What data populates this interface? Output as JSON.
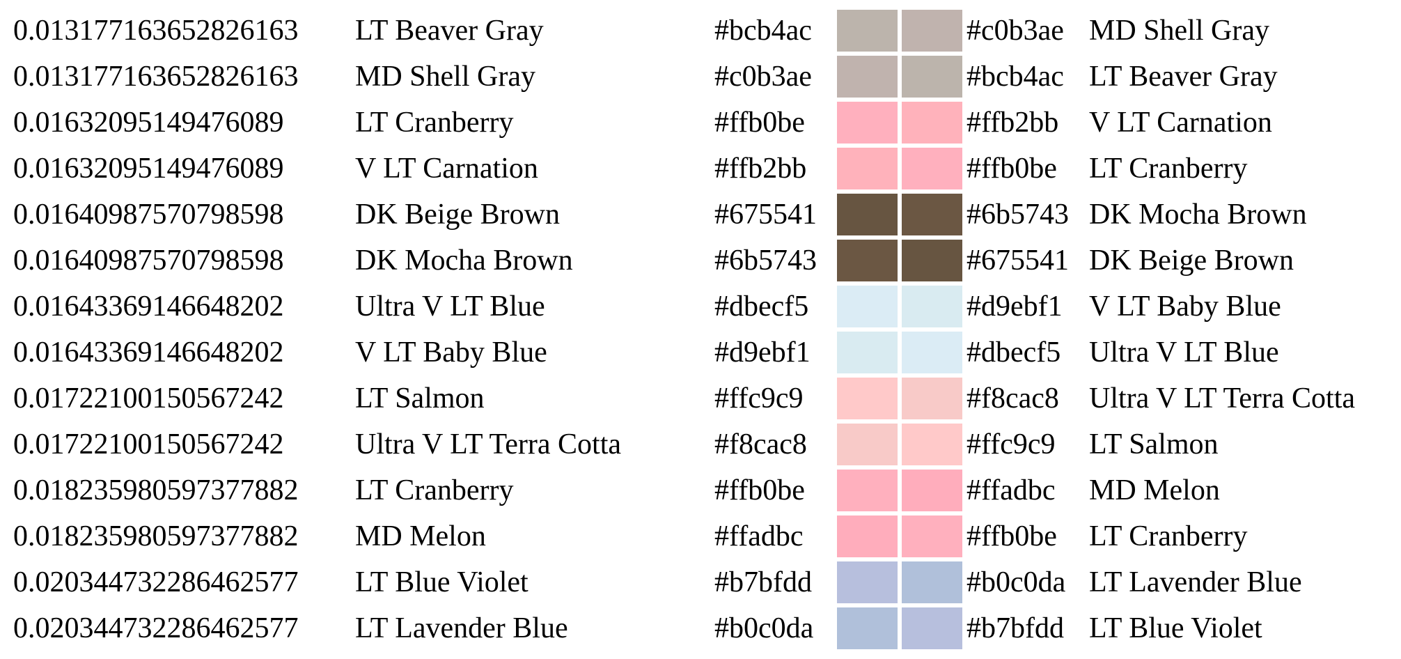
{
  "rows": [
    {
      "distance": "0.013177163652826163",
      "name_a": "LT Beaver Gray",
      "hex_a": "#bcb4ac",
      "hex_b": "#c0b3ae",
      "name_b": "MD Shell Gray"
    },
    {
      "distance": "0.013177163652826163",
      "name_a": "MD Shell Gray",
      "hex_a": "#c0b3ae",
      "hex_b": "#bcb4ac",
      "name_b": "LT Beaver Gray"
    },
    {
      "distance": "0.01632095149476089",
      "name_a": "LT Cranberry",
      "hex_a": "#ffb0be",
      "hex_b": "#ffb2bb",
      "name_b": "V LT Carnation"
    },
    {
      "distance": "0.01632095149476089",
      "name_a": "V LT Carnation",
      "hex_a": "#ffb2bb",
      "hex_b": "#ffb0be",
      "name_b": "LT Cranberry"
    },
    {
      "distance": "0.0164098757079859​8",
      "name_a": "DK Beige Brown",
      "hex_a": "#675541",
      "hex_b": "#6b5743",
      "name_b": "DK Mocha Brown"
    },
    {
      "distance": "0.0164098757079859​8",
      "name_a": "DK Mocha Brown",
      "hex_a": "#6b5743",
      "hex_b": "#675541",
      "name_b": "DK Beige Brown"
    },
    {
      "distance": "0.0164336914664820​2",
      "name_a": "Ultra V LT Blue",
      "hex_a": "#dbecf5",
      "hex_b": "#d9ebf1",
      "name_b": "V LT Baby Blue"
    },
    {
      "distance": "0.0164336914664820​2",
      "name_a": "V LT Baby Blue",
      "hex_a": "#d9ebf1",
      "hex_b": "#dbecf5",
      "name_b": "Ultra V LT Blue"
    },
    {
      "distance": "0.01722100150567242",
      "name_a": "LT Salmon",
      "hex_a": "#ffc9c9",
      "hex_b": "#f8cac8",
      "name_b": "Ultra V LT Terra Cotta"
    },
    {
      "distance": "0.01722100150567242",
      "name_a": "Ultra V LT Terra Cotta",
      "hex_a": "#f8cac8",
      "hex_b": "#ffc9c9",
      "name_b": "LT Salmon"
    },
    {
      "distance": "0.018235980597377882",
      "name_a": "LT Cranberry",
      "hex_a": "#ffb0be",
      "hex_b": "#ffadbc",
      "name_b": "MD Melon"
    },
    {
      "distance": "0.018235980597377882",
      "name_a": "MD Melon",
      "hex_a": "#ffadbc",
      "hex_b": "#ffb0be",
      "name_b": "LT Cranberry"
    },
    {
      "distance": "0.020344732286462577",
      "name_a": "LT Blue Violet",
      "hex_a": "#b7bfdd",
      "hex_b": "#b0c0da",
      "name_b": "LT Lavender Blue"
    },
    {
      "distance": "0.020344732286462577",
      "name_a": "LT Lavender Blue",
      "hex_a": "#b0c0da",
      "hex_b": "#b7bfdd",
      "name_b": "LT Blue Violet"
    }
  ]
}
